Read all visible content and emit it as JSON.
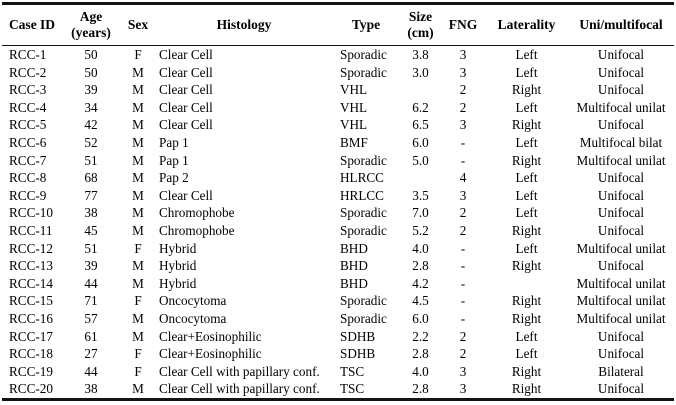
{
  "table": {
    "columns": [
      "Case ID",
      "Age (years)",
      "Sex",
      "Histology",
      "Type",
      "Size (cm)",
      "FNG",
      "Laterality",
      "Uni/multifocal"
    ],
    "rows": [
      [
        "RCC-1",
        "50",
        "F",
        "Clear Cell",
        "Sporadic",
        "3.8",
        "3",
        "Left",
        "Unifocal"
      ],
      [
        "RCC-2",
        "50",
        "M",
        "Clear Cell",
        "Sporadic",
        "3.0",
        "3",
        "Left",
        "Unifocal"
      ],
      [
        "RCC-3",
        "39",
        "M",
        "Clear Cell",
        "VHL",
        "",
        "2",
        "Right",
        "Unifocal"
      ],
      [
        "RCC-4",
        "34",
        "M",
        "Clear Cell",
        "VHL",
        "6.2",
        "2",
        "Left",
        "Multifocal unilat"
      ],
      [
        "RCC-5",
        "42",
        "M",
        "Clear Cell",
        "VHL",
        "6.5",
        "3",
        "Right",
        "Unifocal"
      ],
      [
        "RCC-6",
        "52",
        "M",
        "Pap 1",
        "BMF",
        "6.0",
        "-",
        "Left",
        "Multifocal bilat"
      ],
      [
        "RCC-7",
        "51",
        "M",
        "Pap 1",
        "Sporadic",
        "5.0",
        "-",
        "Right",
        "Multifocal unilat"
      ],
      [
        "RCC-8",
        "68",
        "M",
        "Pap 2",
        "HLRCC",
        "",
        "4",
        "Left",
        "Unifocal"
      ],
      [
        "RCC-9",
        "77",
        "M",
        "Clear Cell",
        "HRLCC",
        "3.5",
        "3",
        "Left",
        "Unifocal"
      ],
      [
        "RCC-10",
        "38",
        "M",
        "Chromophobe",
        "Sporadic",
        "7.0",
        "2",
        "Left",
        "Unifocal"
      ],
      [
        "RCC-11",
        "45",
        "M",
        "Chromophobe",
        "Sporadic",
        "5.2",
        "2",
        "Right",
        "Unifocal"
      ],
      [
        "RCC-12",
        "51",
        "F",
        "Hybrid",
        "BHD",
        "4.0",
        "-",
        "Left",
        "Multifocal unilat"
      ],
      [
        "RCC-13",
        "39",
        "M",
        "Hybrid",
        "BHD",
        "2.8",
        "-",
        "Right",
        "Unifocal"
      ],
      [
        "RCC-14",
        "44",
        "M",
        "Hybrid",
        "BHD",
        "4.2",
        "-",
        "",
        "Multifocal unilat"
      ],
      [
        "RCC-15",
        "71",
        "F",
        "Oncocytoma",
        "Sporadic",
        "4.5",
        "-",
        "Right",
        "Multifocal unilat"
      ],
      [
        "RCC-16",
        "57",
        "M",
        "Oncocytoma",
        "Sporadic",
        "6.0",
        "-",
        "Right",
        "Multifocal unilat"
      ],
      [
        "RCC-17",
        "61",
        "M",
        "Clear+Eosinophilic",
        "SDHB",
        "2.2",
        "2",
        "Left",
        "Unifocal"
      ],
      [
        "RCC-18",
        "27",
        "F",
        "Clear+Eosinophilic",
        "SDHB",
        "2.8",
        "2",
        "Left",
        "Unifocal"
      ],
      [
        "RCC-19",
        "44",
        "F",
        "Clear Cell with papillary conf.",
        "TSC",
        "4.0",
        "3",
        "Right",
        "Bilateral"
      ],
      [
        "RCC-20",
        "38",
        "M",
        "Clear Cell with papillary conf.",
        "TSC",
        "2.8",
        "3",
        "Right",
        "Unifocal"
      ]
    ]
  }
}
